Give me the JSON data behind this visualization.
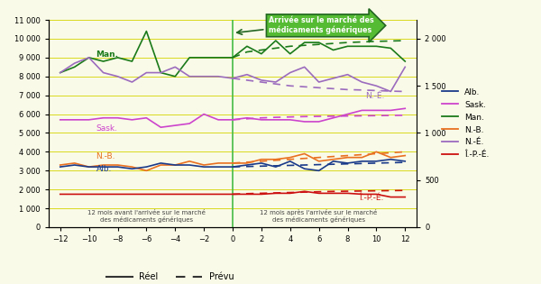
{
  "x": [
    -12,
    -11,
    -10,
    -9,
    -8,
    -7,
    -6,
    -5,
    -4,
    -3,
    -2,
    -1,
    0,
    1,
    2,
    3,
    4,
    5,
    6,
    7,
    8,
    9,
    10,
    11,
    12
  ],
  "man_real": [
    8200,
    8500,
    9000,
    8800,
    9000,
    8800,
    10400,
    8200,
    8000,
    9000,
    9000,
    9000,
    9000,
    9600,
    9200,
    9900,
    9200,
    9800,
    9800,
    9400,
    9600,
    9600,
    9600,
    9500,
    8800
  ],
  "man_pred": [
    null,
    null,
    null,
    null,
    null,
    null,
    null,
    null,
    null,
    null,
    null,
    null,
    9000,
    9300,
    9400,
    9500,
    9600,
    9650,
    9700,
    9750,
    9800,
    9830,
    9860,
    9880,
    9900
  ],
  "ne_real": [
    8200,
    8700,
    9000,
    8200,
    8000,
    7700,
    8200,
    8200,
    8500,
    8000,
    8000,
    8000,
    7900,
    8100,
    7800,
    7700,
    8200,
    8500,
    7700,
    7900,
    8100,
    7700,
    7500,
    7200,
    8500
  ],
  "ne_pred": [
    null,
    null,
    null,
    null,
    null,
    null,
    null,
    null,
    null,
    null,
    null,
    null,
    7900,
    7800,
    7700,
    7600,
    7500,
    7450,
    7400,
    7350,
    7300,
    7280,
    7250,
    7220,
    7200
  ],
  "sask_real": [
    5700,
    5700,
    5700,
    5800,
    5800,
    5700,
    5800,
    5300,
    5400,
    5500,
    6000,
    5700,
    5700,
    5800,
    5700,
    5700,
    5700,
    5600,
    5600,
    5800,
    6000,
    6200,
    6200,
    6200,
    6300
  ],
  "sask_pred": [
    null,
    null,
    null,
    null,
    null,
    null,
    null,
    null,
    null,
    null,
    null,
    null,
    5700,
    5750,
    5800,
    5830,
    5850,
    5870,
    5880,
    5890,
    5900,
    5910,
    5920,
    5930,
    5940
  ],
  "nb_real": [
    3300,
    3400,
    3200,
    3300,
    3300,
    3200,
    3000,
    3300,
    3300,
    3500,
    3300,
    3400,
    3400,
    3400,
    3600,
    3600,
    3700,
    3900,
    3500,
    3600,
    3700,
    3700,
    4000,
    3700,
    3800
  ],
  "nb_pred": [
    null,
    null,
    null,
    null,
    null,
    null,
    null,
    null,
    null,
    null,
    null,
    null,
    3400,
    3450,
    3500,
    3550,
    3600,
    3650,
    3700,
    3750,
    3800,
    3850,
    3900,
    3950,
    4000
  ],
  "alb_real": [
    3200,
    3300,
    3200,
    3200,
    3200,
    3100,
    3200,
    3400,
    3300,
    3300,
    3200,
    3200,
    3200,
    3300,
    3400,
    3200,
    3500,
    3100,
    3000,
    3500,
    3400,
    3500,
    3500,
    3600,
    3500
  ],
  "alb_pred": [
    null,
    null,
    null,
    null,
    null,
    null,
    null,
    null,
    null,
    null,
    null,
    null,
    3200,
    3220,
    3240,
    3260,
    3280,
    3300,
    3320,
    3340,
    3360,
    3380,
    3400,
    3420,
    3440
  ],
  "ipe_real": [
    1750,
    1750,
    1750,
    1750,
    1750,
    1750,
    1750,
    1750,
    1750,
    1750,
    1750,
    1750,
    1750,
    1750,
    1750,
    1800,
    1800,
    1900,
    1800,
    1800,
    1800,
    1750,
    1750,
    1600,
    1600
  ],
  "ipe_pred": [
    null,
    null,
    null,
    null,
    null,
    null,
    null,
    null,
    null,
    null,
    null,
    null,
    1750,
    1780,
    1800,
    1820,
    1840,
    1860,
    1880,
    1900,
    1910,
    1920,
    1930,
    1940,
    1950
  ],
  "colors": {
    "man": "#1A7A1A",
    "ne": "#9B6BBE",
    "sask": "#CC44CC",
    "nb": "#E87020",
    "alb": "#1A3A8A",
    "ipe": "#CC1111"
  },
  "bg_color": "#FAFAE8",
  "grid_color": "#D4D400",
  "vline_color": "#44BB44",
  "annotation_text": "Arrivée sur le marché des\nmédicaments génériques",
  "annotation_bg": "#55BB33",
  "annotation_border": "#226622",
  "left_label_before": "12 mois avant l'arrivée sur le marché\ndes médicaments génériques",
  "left_label_after": "12 mois après l'arrivée sur le marché\ndes médicaments génériques",
  "legend_reel": "Réel",
  "legend_prevu": "Prévu",
  "ylim_left": [
    0,
    11000
  ],
  "ylim_right": [
    0,
    2200
  ],
  "yticks_left": [
    0,
    1000,
    2000,
    3000,
    4000,
    5000,
    6000,
    7000,
    8000,
    9000,
    10000,
    11000
  ],
  "yticks_right": [
    0,
    500,
    1000,
    1500,
    2000
  ],
  "xticks": [
    -12,
    -10,
    -8,
    -6,
    -4,
    -2,
    0,
    2,
    4,
    6,
    8,
    10,
    12
  ]
}
